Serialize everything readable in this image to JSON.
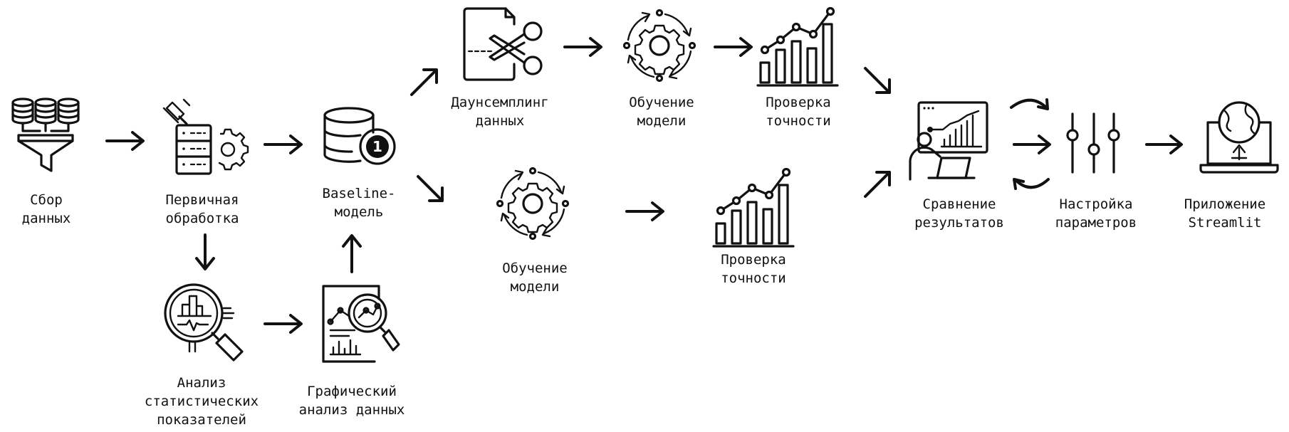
{
  "labels": {
    "data_collection": "Сбор\nданных",
    "preprocessing": "Первичная\nобработка",
    "stats_analysis": "Анализ\nстатистических\nпоказателей",
    "graphical_analysis": "Графический\nанализ данных",
    "baseline_model": "Baseline-\nмодель",
    "downsampling": "Даунсемплинг\nданных",
    "training_top": "Обучение\nмодели",
    "accuracy_top": "Проверка\nточности",
    "training_bottom": "Обучение\nмодели",
    "accuracy_bottom": "Проверка\nточности",
    "compare_results": "Сравнение\nрезультатов",
    "tune_params": "Настройка\nпараметров",
    "streamlit_app": "Приложение\nStreamlit"
  },
  "icons": {
    "badge_number": "1"
  }
}
